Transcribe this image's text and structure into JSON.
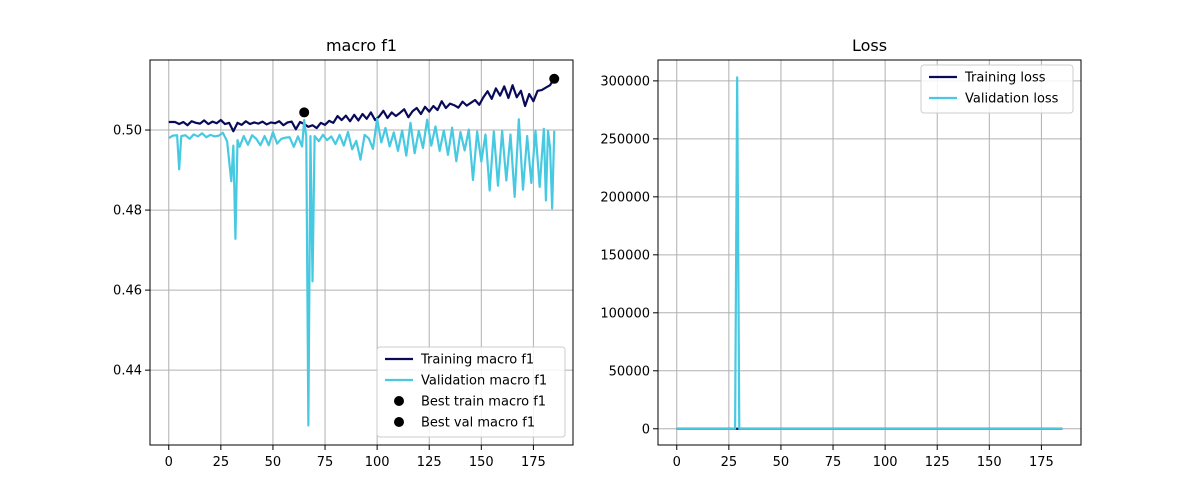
{
  "chart_data": [
    {
      "type": "line",
      "title": "macro f1",
      "xlabel": "",
      "ylabel": "",
      "xlim": [
        -9,
        194
      ],
      "ylim": [
        0.4213,
        0.5175
      ],
      "xticks": [
        0,
        25,
        50,
        75,
        100,
        125,
        150,
        175
      ],
      "yticks": [
        0.44,
        0.46,
        0.48,
        0.5
      ],
      "ytick_format": 2,
      "grid": true,
      "legend_position": "lower right",
      "series": [
        {
          "name": "Training macro f1",
          "color": "#0a0a5a",
          "kind": "line",
          "x": [
            0,
            3,
            5,
            7,
            9,
            11,
            13,
            15,
            17,
            19,
            21,
            23,
            25,
            27,
            29,
            31,
            33,
            35,
            37,
            39,
            41,
            43,
            45,
            47,
            49,
            51,
            53,
            55,
            57,
            59,
            61,
            63,
            65,
            67,
            69,
            71,
            73,
            75,
            77,
            79,
            81,
            83,
            85,
            87,
            89,
            91,
            93,
            95,
            97,
            99,
            101,
            103,
            105,
            107,
            109,
            111,
            113,
            115,
            117,
            119,
            121,
            123,
            125,
            127,
            129,
            131,
            133,
            135,
            137,
            139,
            141,
            143,
            145,
            147,
            149,
            151,
            153,
            155,
            157,
            159,
            161,
            163,
            165,
            167,
            169,
            171,
            173,
            175,
            177,
            179,
            181,
            183,
            185
          ],
          "values": [
            0.502,
            0.502,
            0.5015,
            0.502,
            0.5012,
            0.5022,
            0.5018,
            0.5016,
            0.5024,
            0.5015,
            0.5021,
            0.5017,
            0.5025,
            0.5015,
            0.5018,
            0.4997,
            0.5018,
            0.5013,
            0.5022,
            0.5015,
            0.5019,
            0.5016,
            0.5021,
            0.5014,
            0.5019,
            0.5017,
            0.5022,
            0.5012,
            0.5019,
            0.5021,
            0.5002,
            0.502,
            0.5015,
            0.5008,
            0.5012,
            0.5005,
            0.5018,
            0.5013,
            0.5023,
            0.5018,
            0.5035,
            0.5025,
            0.5036,
            0.5022,
            0.5038,
            0.5024,
            0.504,
            0.5028,
            0.5044,
            0.5025,
            0.5034,
            0.5048,
            0.503,
            0.5044,
            0.5035,
            0.5043,
            0.5052,
            0.5032,
            0.5047,
            0.5055,
            0.504,
            0.5058,
            0.5046,
            0.506,
            0.505,
            0.5072,
            0.5055,
            0.5066,
            0.5062,
            0.5056,
            0.5071,
            0.5061,
            0.5068,
            0.5075,
            0.5063,
            0.5082,
            0.5097,
            0.5078,
            0.5104,
            0.5086,
            0.5109,
            0.508,
            0.5112,
            0.5082,
            0.5098,
            0.506,
            0.509,
            0.5072,
            0.5098,
            0.51,
            0.5106,
            0.5112,
            0.513
          ]
        },
        {
          "name": "Validation macro f1",
          "color": "#48c9e2",
          "kind": "line",
          "x": [
            0,
            2,
            4,
            5,
            6,
            8,
            10,
            12,
            14,
            16,
            18,
            20,
            22,
            24,
            26,
            28,
            30,
            31,
            32,
            33,
            34,
            36,
            38,
            40,
            42,
            44,
            46,
            48,
            50,
            52,
            54,
            56,
            58,
            60,
            62,
            64,
            65,
            66,
            67,
            68,
            69,
            70,
            72,
            74,
            76,
            78,
            80,
            82,
            84,
            86,
            88,
            90,
            92,
            94,
            96,
            98,
            100,
            102,
            104,
            106,
            108,
            110,
            112,
            114,
            116,
            118,
            120,
            122,
            124,
            126,
            128,
            130,
            132,
            134,
            136,
            138,
            140,
            142,
            144,
            146,
            148,
            150,
            152,
            154,
            156,
            158,
            160,
            162,
            164,
            166,
            168,
            170,
            172,
            174,
            176,
            178,
            180,
            181,
            182,
            183,
            184,
            185
          ],
          "values": [
            0.498,
            0.4986,
            0.4987,
            0.4902,
            0.4985,
            0.4987,
            0.4978,
            0.4989,
            0.4984,
            0.4992,
            0.4982,
            0.4988,
            0.4984,
            0.4986,
            0.4993,
            0.4972,
            0.4872,
            0.4961,
            0.4728,
            0.4975,
            0.4958,
            0.4985,
            0.4963,
            0.4987,
            0.4978,
            0.4962,
            0.4985,
            0.4962,
            0.4995,
            0.4966,
            0.4978,
            0.4981,
            0.4982,
            0.4958,
            0.4984,
            0.4959,
            0.5025,
            0.4982,
            0.4262,
            0.4985,
            0.4622,
            0.4985,
            0.4972,
            0.4988,
            0.4975,
            0.4984,
            0.4965,
            0.4988,
            0.4961,
            0.4995,
            0.4952,
            0.4973,
            0.4926,
            0.4988,
            0.4979,
            0.4953,
            0.5028,
            0.4969,
            0.5005,
            0.4959,
            0.4994,
            0.4948,
            0.4999,
            0.4936,
            0.5018,
            0.4942,
            0.4998,
            0.4955,
            0.5026,
            0.4961,
            0.5009,
            0.4948,
            0.4999,
            0.4938,
            0.5006,
            0.4922,
            0.4995,
            0.4949,
            0.5001,
            0.4875,
            0.4996,
            0.4921,
            0.4989,
            0.4849,
            0.4996,
            0.4861,
            0.4998,
            0.4874,
            0.4989,
            0.4833,
            0.5027,
            0.4851,
            0.4985,
            0.4868,
            0.4998,
            0.4858,
            0.5003,
            0.4824,
            0.4998,
            0.4956,
            0.4804,
            0.4998
          ]
        },
        {
          "name": "Best train macro f1",
          "color": "#000000",
          "kind": "marker",
          "x": [
            185
          ],
          "values": [
            0.5128
          ]
        },
        {
          "name": "Best val macro f1",
          "color": "#000000",
          "kind": "marker",
          "x": [
            65
          ],
          "values": [
            0.5044
          ]
        }
      ]
    },
    {
      "type": "line",
      "title": "Loss",
      "xlabel": "",
      "ylabel": "",
      "xlim": [
        -9,
        194
      ],
      "ylim": [
        -14000,
        318000
      ],
      "xticks": [
        0,
        25,
        50,
        75,
        100,
        125,
        150,
        175
      ],
      "yticks": [
        0,
        50000,
        100000,
        150000,
        200000,
        250000,
        300000
      ],
      "ytick_format": 0,
      "grid": true,
      "legend_position": "upper right",
      "series": [
        {
          "name": "Training loss",
          "color": "#0a0a5a",
          "kind": "line",
          "x": [
            0,
            28,
            29,
            30,
            185
          ],
          "values": [
            0.7,
            0.7,
            0.7,
            0.7,
            0.7
          ]
        },
        {
          "name": "Validation loss",
          "color": "#48c9e2",
          "kind": "line",
          "x": [
            0,
            27,
            28,
            29,
            30,
            31,
            185
          ],
          "values": [
            0.7,
            0.7,
            0.8,
            303000,
            0.8,
            0.7,
            0.7
          ]
        }
      ]
    }
  ]
}
